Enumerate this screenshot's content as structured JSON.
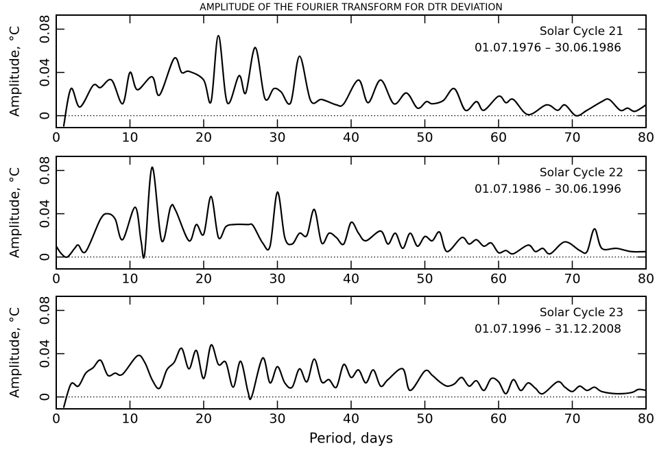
{
  "chart_data": [
    {
      "type": "line",
      "title": "AMPLITUDE OF THE FOURIER TRANSFORM FOR DTR DEVIATION",
      "annotations": [
        "Solar Cycle 21",
        "01.07.1976 – 30.06.1986"
      ],
      "y_label": "Amplitude, °C",
      "xlim": [
        0,
        80
      ],
      "xticks": [
        0,
        10,
        20,
        30,
        40,
        50,
        60,
        70,
        80
      ],
      "ylim": [
        -0.011,
        0.093
      ],
      "yticks": [
        0,
        0.04,
        0.08
      ],
      "color": "#000000",
      "x": [
        1,
        2,
        3.2,
        5,
        6,
        7.5,
        9,
        10,
        11,
        13,
        14,
        16,
        17,
        18,
        20,
        21,
        22,
        23.2,
        24.8,
        25.7,
        27,
        28.3,
        29.5,
        30.5,
        31.8,
        33,
        34.5,
        36,
        38,
        39,
        41,
        42.3,
        44,
        45.8,
        47.5,
        49,
        50.2,
        51,
        52.5,
        54,
        55.5,
        57,
        58,
        60,
        61,
        62,
        64,
        66.5,
        68,
        69,
        70.5,
        72,
        74,
        75,
        76.5,
        77.5,
        78.5,
        80
      ],
      "values": [
        -0.01,
        0.025,
        0.008,
        0.028,
        0.026,
        0.033,
        0.011,
        0.04,
        0.024,
        0.036,
        0.019,
        0.053,
        0.04,
        0.041,
        0.033,
        0.013,
        0.074,
        0.012,
        0.037,
        0.021,
        0.063,
        0.016,
        0.025,
        0.022,
        0.012,
        0.055,
        0.014,
        0.015,
        0.01,
        0.011,
        0.033,
        0.012,
        0.033,
        0.011,
        0.021,
        0.007,
        0.013,
        0.011,
        0.014,
        0.025,
        0.005,
        0.013,
        0.005,
        0.018,
        0.012,
        0.015,
        0.001,
        0.01,
        0.005,
        0.01,
        0.0,
        0.005,
        0.013,
        0.015,
        0.005,
        0.007,
        0.004,
        0.01
      ]
    },
    {
      "type": "line",
      "annotations": [
        "Solar Cycle 22",
        "01.07.1986 – 30.06.1996"
      ],
      "y_label": "Amplitude, °C",
      "xlim": [
        0,
        80
      ],
      "xticks": [
        0,
        10,
        20,
        30,
        40,
        50,
        60,
        70,
        80
      ],
      "ylim": [
        -0.011,
        0.093
      ],
      "yticks": [
        0,
        0.04,
        0.08
      ],
      "color": "#000000",
      "x": [
        0,
        0.7,
        1.5,
        2.5,
        3,
        4,
        6,
        7,
        8,
        9,
        10.7,
        11.5,
        12,
        13,
        14.3,
        15.5,
        16.2,
        18,
        19,
        20,
        21,
        22,
        23,
        24,
        26,
        26.7,
        28,
        29,
        30,
        31,
        32,
        33,
        34,
        35,
        36,
        37,
        38,
        39,
        40,
        41,
        42,
        44,
        45,
        46,
        47,
        48,
        49,
        50,
        51,
        52,
        53,
        55,
        56,
        57,
        58,
        59,
        60,
        61,
        62,
        64,
        65,
        66,
        67,
        69,
        71,
        72,
        73,
        74,
        76,
        78,
        80
      ],
      "values": [
        0.01,
        0.003,
        0.0,
        0.008,
        0.011,
        0.005,
        0.035,
        0.04,
        0.035,
        0.016,
        0.046,
        0.015,
        0.003,
        0.083,
        0.015,
        0.046,
        0.043,
        0.015,
        0.03,
        0.021,
        0.056,
        0.018,
        0.028,
        0.03,
        0.03,
        0.029,
        0.013,
        0.01,
        0.06,
        0.018,
        0.012,
        0.022,
        0.02,
        0.044,
        0.013,
        0.022,
        0.018,
        0.012,
        0.032,
        0.022,
        0.015,
        0.024,
        0.012,
        0.022,
        0.008,
        0.022,
        0.01,
        0.019,
        0.015,
        0.023,
        0.005,
        0.018,
        0.012,
        0.016,
        0.01,
        0.013,
        0.004,
        0.006,
        0.003,
        0.011,
        0.005,
        0.008,
        0.003,
        0.014,
        0.006,
        0.005,
        0.026,
        0.008,
        0.008,
        0.005,
        0.005
      ]
    },
    {
      "type": "line",
      "annotations": [
        "Solar Cycle 23",
        "01.07.1996 – 31.12.2008"
      ],
      "y_label": "Amplitude, °C",
      "x_label": "Period, days",
      "xlim": [
        0,
        80
      ],
      "xticks": [
        0,
        10,
        20,
        30,
        40,
        50,
        60,
        70,
        80
      ],
      "ylim": [
        -0.011,
        0.093
      ],
      "yticks": [
        0,
        0.04,
        0.08
      ],
      "color": "#000000",
      "x": [
        1,
        2,
        3,
        4,
        5,
        6,
        7,
        8,
        9,
        11,
        12,
        13,
        14,
        15,
        16,
        17,
        18,
        19,
        20,
        21,
        22,
        23,
        24,
        25,
        26,
        26.5,
        28,
        29,
        30,
        31,
        32,
        33,
        34,
        35,
        36,
        37,
        38,
        39,
        40,
        41,
        42,
        43,
        44,
        45,
        47,
        48,
        50,
        51,
        52,
        53,
        54,
        55,
        56,
        57,
        58,
        59,
        60,
        61,
        62,
        63,
        64,
        65,
        66,
        68,
        69,
        70,
        71,
        72,
        73,
        74,
        76,
        78,
        79,
        80
      ],
      "values": [
        -0.01,
        0.012,
        0.01,
        0.022,
        0.027,
        0.034,
        0.02,
        0.022,
        0.021,
        0.038,
        0.032,
        0.016,
        0.008,
        0.025,
        0.032,
        0.045,
        0.026,
        0.043,
        0.017,
        0.048,
        0.03,
        0.032,
        0.009,
        0.033,
        0.005,
        0.0,
        0.036,
        0.013,
        0.028,
        0.013,
        0.009,
        0.026,
        0.014,
        0.035,
        0.014,
        0.016,
        0.009,
        0.03,
        0.018,
        0.025,
        0.013,
        0.025,
        0.01,
        0.016,
        0.026,
        0.006,
        0.024,
        0.02,
        0.014,
        0.01,
        0.012,
        0.018,
        0.01,
        0.015,
        0.006,
        0.017,
        0.014,
        0.003,
        0.016,
        0.006,
        0.013,
        0.008,
        0.003,
        0.014,
        0.009,
        0.005,
        0.01,
        0.006,
        0.009,
        0.005,
        0.003,
        0.004,
        0.007,
        0.006
      ]
    }
  ]
}
